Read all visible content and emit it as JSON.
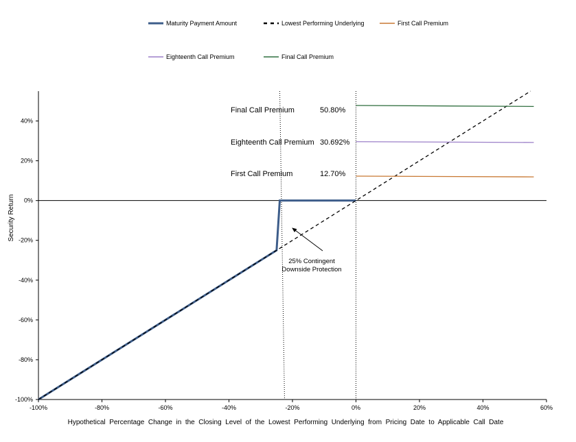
{
  "chart_data": {
    "type": "line",
    "xlabel": "Hypothetical  Percentage  Change  in  the  Closing  Level  of  the  Lowest  Performing  Underlying  from  Pricing  Date  to  Applicable  Call  Date",
    "ylabel": "Security Return",
    "xlim": [
      -100,
      60
    ],
    "ylim": [
      -100,
      55
    ],
    "x_ticks": [
      -100,
      -80,
      -60,
      -40,
      -20,
      0,
      20,
      40,
      60
    ],
    "y_ticks": [
      -100,
      -80,
      -60,
      -40,
      -20,
      0,
      20,
      40
    ],
    "x_tick_labels": [
      "-100%",
      "-80%",
      "-60%",
      "-40%",
      "-20%",
      "0%",
      "20%",
      "40%",
      "60%"
    ],
    "y_tick_labels": [
      "-100%",
      "-80%",
      "-60%",
      "-40%",
      "-20%",
      "0%",
      "20%",
      "40%"
    ],
    "legend_placement": "top",
    "series": [
      {
        "name": "Maturity Payment Amount",
        "color": "#3d5d8a",
        "style": "solid-thick",
        "x": [
          -100,
          -25,
          -24,
          0
        ],
        "y": [
          -100,
          -25,
          0,
          0
        ]
      },
      {
        "name": "Lowest Performing Underlying",
        "color": "#000000",
        "style": "dashed",
        "x": [
          -100,
          55
        ],
        "y": [
          -100,
          55
        ]
      },
      {
        "name": "First Call Premium",
        "color": "#c87832",
        "style": "solid",
        "x": [
          0,
          56
        ],
        "y": [
          12.3,
          11.9
        ]
      },
      {
        "name": "Eighteenth Call Premium",
        "color": "#9b7fc8",
        "style": "solid",
        "x": [
          0,
          56
        ],
        "y": [
          29.6,
          29.2
        ]
      },
      {
        "name": "Final Call Premium",
        "color": "#2f6e3e",
        "style": "solid",
        "x": [
          0,
          56
        ],
        "y": [
          47.8,
          47.3
        ]
      }
    ],
    "premium_table": [
      {
        "label": "Final Call Premium",
        "value": "50.80%"
      },
      {
        "label": "Eighteenth Call Premium",
        "value": "30.692%"
      },
      {
        "label": "First Call Premium",
        "value": "12.70%"
      }
    ],
    "annotation": {
      "lines": [
        "25% Contingent",
        "Downside Protection"
      ],
      "arrow_from": [
        -14,
        -24
      ],
      "arrow_to": [
        -20,
        -14
      ]
    },
    "vertical_reference_lines": [
      {
        "x_top": -24,
        "x_bottom": -22.5
      },
      {
        "x_top": 0,
        "x_bottom": 0
      }
    ]
  }
}
